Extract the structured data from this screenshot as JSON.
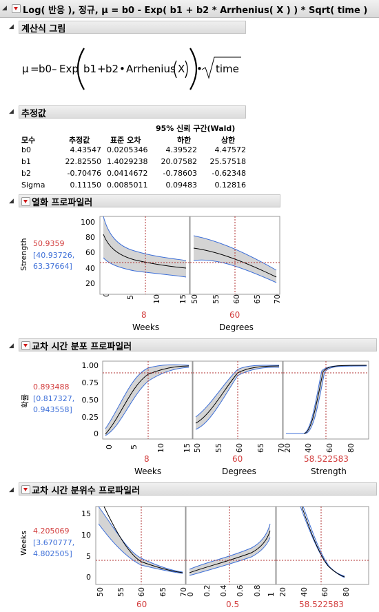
{
  "title": "Log( 반응 ), 정규, μ = b0 - Exp( b1 + b2 * Arrhenius( X ) ) * Sqrt( time )",
  "formula_section": {
    "header": "계산식 그림",
    "mu": "μ",
    "eq": "=",
    "b0": "b0",
    "minus": "–",
    "exp": "Exp",
    "b1": "b1",
    "plus": "+",
    "b2": "b2",
    "dot1": "•",
    "arrhenius": "Arrhenius",
    "x": "X",
    "dot2": "•",
    "time": "time"
  },
  "estimates": {
    "header": "추정값",
    "ci_header": "95% 신뢰 구간(Wald)",
    "columns": [
      "모수",
      "추정값",
      "표준 오차",
      "하한",
      "상한"
    ],
    "rows": [
      [
        "b0",
        "4.43547",
        "0.0205346",
        "4.39522",
        "4.47572"
      ],
      [
        "b1",
        "22.82550",
        "1.4029238",
        "20.07582",
        "25.57518"
      ],
      [
        "b2",
        "-0.70476",
        "0.0414672",
        "-0.78603",
        "-0.62348"
      ],
      [
        "Sigma",
        "0.11150",
        "0.0085011",
        "0.09483",
        "0.12816"
      ]
    ]
  },
  "profiler1": {
    "header": "열화 프로파일러",
    "ylabel": "Strength",
    "value": "50.9359",
    "ci_a": "[40.93726,",
    "ci_b": "63.37664]",
    "yticks": [
      "100",
      "80",
      "60",
      "40",
      "20"
    ],
    "p1_xticks": [
      "0",
      "5",
      "10",
      "15"
    ],
    "p2_xticks": [
      "50",
      "55",
      "60",
      "65",
      "70"
    ],
    "p1_value": "8",
    "p2_value": "60",
    "p1_label": "Weeks",
    "p2_label": "Degrees"
  },
  "profiler2": {
    "header": "교차 시간 분포 프로파일러",
    "ylabel": "확률",
    "value": "0.893488",
    "ci_a": "[0.817327,",
    "ci_b": "0.943558]",
    "yticks": [
      "1.00",
      "0.75",
      "0.50",
      "0.25",
      "0"
    ],
    "p1_xticks": [
      "0",
      "5",
      "10",
      "15"
    ],
    "p2_xticks": [
      "50",
      "55",
      "60",
      "65",
      "70"
    ],
    "p3_xticks": [
      "20",
      "40",
      "60",
      "80"
    ],
    "p1_value": "8",
    "p2_value": "60",
    "p3_value": "58.522583",
    "p1_label": "Weeks",
    "p2_label": "Degrees",
    "p3_label": "Strength"
  },
  "profiler3": {
    "header": "교차 시간 분위수 프로파일러",
    "ylabel": "Weeks",
    "value": "4.205069",
    "ci_a": "[3.670777,",
    "ci_b": "4.802505]",
    "yticks": [
      "15",
      "10",
      "5",
      "0"
    ],
    "p1_xticks": [
      "50",
      "55",
      "60",
      "65",
      "70"
    ],
    "p2_xticks": [
      "0",
      "0.2",
      "0.4",
      "0.6",
      "0.8",
      "1"
    ],
    "p3_xticks": [
      "20",
      "40",
      "60",
      "80"
    ],
    "p1_value": "60",
    "p2_value": "0.5",
    "p3_value": "58.522583"
  },
  "colors": {
    "accent_red": "#d23c3c",
    "ci_blue": "#3d6fd8",
    "band_fill": "#d4d4d4",
    "ref_line": "#b03030"
  }
}
